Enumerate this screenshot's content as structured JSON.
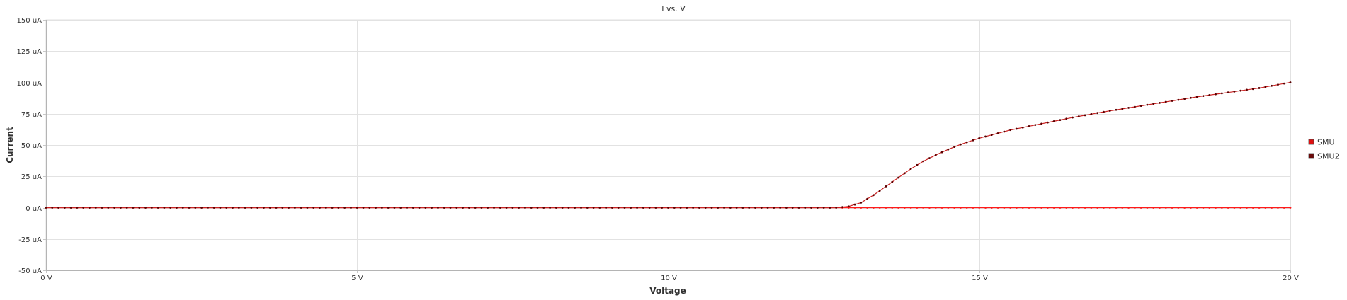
{
  "chart_data": {
    "type": "line",
    "title": "I vs. V",
    "xlabel": "Voltage",
    "ylabel": "Current",
    "xlim": [
      0,
      20
    ],
    "ylim": [
      -50,
      150
    ],
    "x_ticks": [
      0,
      5,
      10,
      15,
      20
    ],
    "x_tick_labels": [
      "0 V",
      "5 V",
      "10 V",
      "15 V",
      "20 V"
    ],
    "y_ticks": [
      -50,
      -25,
      0,
      25,
      50,
      75,
      100,
      125,
      150
    ],
    "y_tick_labels": [
      "-50 uA",
      "-25 uA",
      "0 uA",
      "25 uA",
      "50 uA",
      "75 uA",
      "100 uA",
      "125 uA",
      "150 uA"
    ],
    "grid": true,
    "legend_position": "right",
    "x_step": 0.1,
    "series": [
      {
        "name": "SMU",
        "color": "#ff1a1a",
        "marker_color": "#ff1a1a",
        "x": [
          0,
          20
        ],
        "y": [
          0,
          0
        ]
      },
      {
        "name": "SMU2",
        "color": "#cc2222",
        "marker_color": "#5a0000",
        "x": [
          0,
          12.7,
          12.9,
          13.1,
          13.3,
          13.5,
          13.7,
          13.9,
          14.1,
          14.3,
          14.5,
          14.7,
          15,
          15.5,
          16,
          16.5,
          17,
          17.5,
          18,
          18.5,
          19,
          19.5,
          20
        ],
        "y": [
          0,
          0,
          1,
          4,
          10,
          17,
          24,
          31,
          37,
          42,
          46.5,
          50.5,
          55.5,
          62,
          67,
          72,
          76.5,
          80.5,
          84.5,
          88.5,
          92,
          95.5,
          100
        ]
      }
    ]
  }
}
